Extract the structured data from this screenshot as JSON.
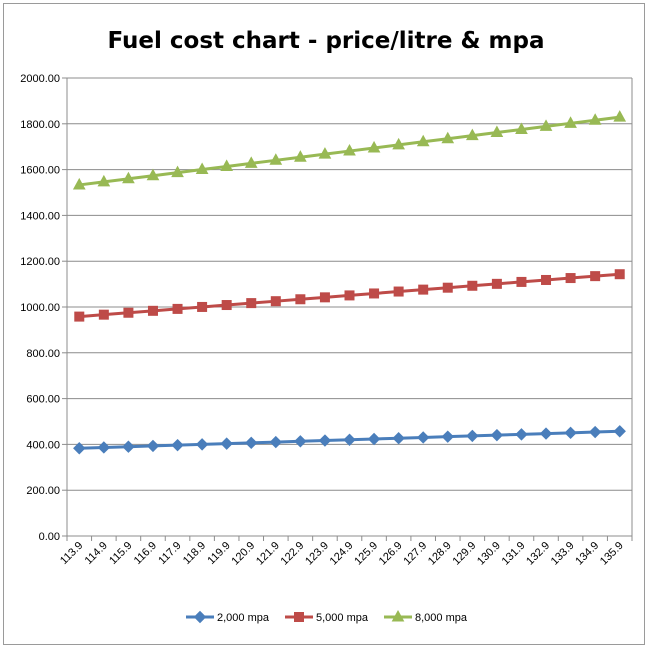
{
  "chart_data": {
    "type": "line",
    "title": "Fuel cost chart - price/litre & mpa",
    "xlabel": "",
    "ylabel": "",
    "x": [
      "113.9",
      "114.9",
      "115.9",
      "116.9",
      "117.9",
      "118.9",
      "119.9",
      "120.9",
      "121.9",
      "122.9",
      "123.9",
      "124.9",
      "125.9",
      "126.9",
      "127.9",
      "128.9",
      "129.9",
      "130.9",
      "131.9",
      "132.9",
      "133.9",
      "134.9",
      "135.9"
    ],
    "ylim": [
      0,
      2000
    ],
    "yticks": [
      "0.00",
      "200.00",
      "400.00",
      "600.00",
      "800.00",
      "1000.00",
      "1200.00",
      "1400.00",
      "1600.00",
      "1800.00",
      "2000.00"
    ],
    "grid": true,
    "legend_position": "bottom",
    "series": [
      {
        "name": "2,000 mpa",
        "color": "#4a7ebb",
        "marker": "diamond",
        "values": [
          383.2,
          386.6,
          390.0,
          393.3,
          396.7,
          400.1,
          403.4,
          406.8,
          410.1,
          413.5,
          416.9,
          420.2,
          423.6,
          427.0,
          430.3,
          433.7,
          437.1,
          440.4,
          443.8,
          447.2,
          450.5,
          453.9,
          457.3
        ]
      },
      {
        "name": "5,000 mpa",
        "color": "#be4b48",
        "marker": "square",
        "values": [
          958.1,
          966.5,
          974.9,
          983.3,
          991.7,
          1000.2,
          1008.6,
          1017.0,
          1025.4,
          1033.8,
          1042.2,
          1050.6,
          1059.1,
          1067.5,
          1075.9,
          1084.3,
          1092.7,
          1101.1,
          1109.5,
          1118.0,
          1126.4,
          1134.8,
          1143.2
        ]
      },
      {
        "name": "8,000 mpa",
        "color": "#98b954",
        "marker": "triangle",
        "values": [
          1533.0,
          1546.4,
          1559.9,
          1573.3,
          1586.8,
          1600.3,
          1613.7,
          1627.2,
          1640.6,
          1654.1,
          1667.5,
          1681.0,
          1694.5,
          1707.9,
          1721.4,
          1734.8,
          1748.3,
          1761.8,
          1775.2,
          1788.7,
          1802.1,
          1815.6,
          1829.1
        ]
      }
    ]
  }
}
